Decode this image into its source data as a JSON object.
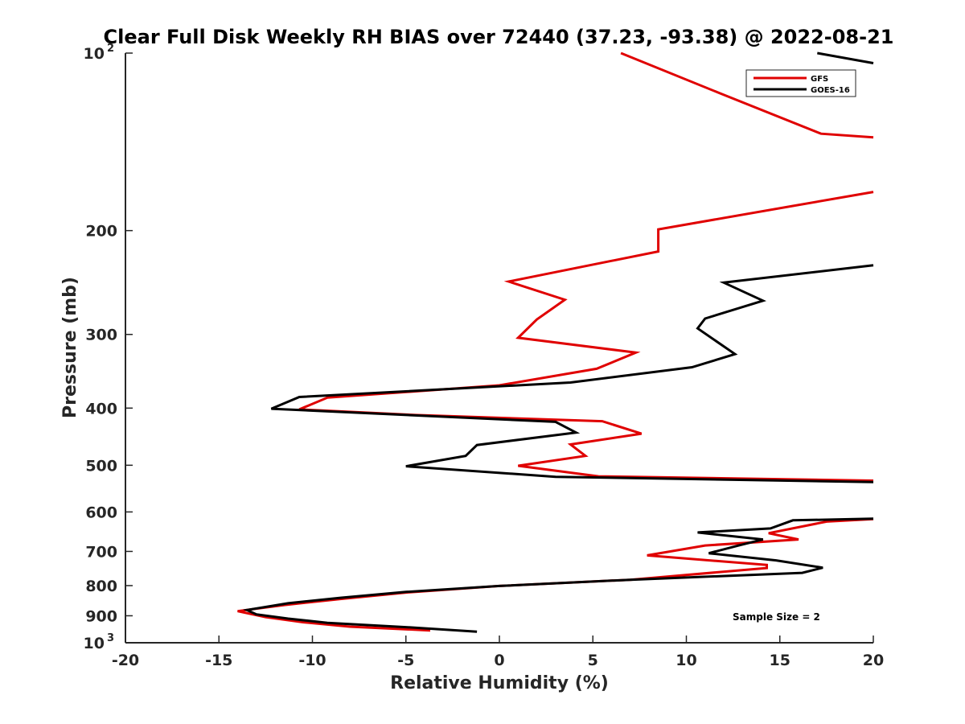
{
  "chart_data": {
    "type": "line",
    "title": "Clear Full Disk Weekly RH BIAS over 72440 (37.23, -93.38) @ 2022-08-21",
    "xlabel": "Relative Humidity (%)",
    "ylabel": "Pressure (mb)",
    "xlim": [
      -20,
      20
    ],
    "ylim": [
      100,
      1000
    ],
    "yscale": "log",
    "y_reversed": true,
    "xticks": [
      -20,
      -15,
      -10,
      -5,
      0,
      5,
      10,
      15,
      20
    ],
    "yticks": [
      {
        "value": 100,
        "label_base": "10",
        "label_exp": "2"
      },
      {
        "value": 200,
        "label_base": "200",
        "label_exp": ""
      },
      {
        "value": 300,
        "label_base": "300",
        "label_exp": ""
      },
      {
        "value": 400,
        "label_base": "400",
        "label_exp": ""
      },
      {
        "value": 500,
        "label_base": "500",
        "label_exp": ""
      },
      {
        "value": 600,
        "label_base": "600",
        "label_exp": ""
      },
      {
        "value": 700,
        "label_base": "700",
        "label_exp": ""
      },
      {
        "value": 800,
        "label_base": "800",
        "label_exp": ""
      },
      {
        "value": 900,
        "label_base": "900",
        "label_exp": ""
      },
      {
        "value": 1000,
        "label_base": "10",
        "label_exp": "3"
      }
    ],
    "grid": false,
    "legend_position": "top-right",
    "annotation": "Sample Size = 2",
    "series": [
      {
        "name": "GFS",
        "color": "#e00000",
        "points": [
          [
            6.5,
            100
          ],
          [
            11.8,
            117
          ],
          [
            17.2,
            137
          ],
          [
            20.0,
            139
          ],
          [
            null,
            null
          ],
          [
            20.0,
            172
          ],
          [
            8.5,
            199
          ],
          [
            8.5,
            217
          ],
          [
            0.5,
            244
          ],
          [
            3.5,
            262
          ],
          [
            2.0,
            283
          ],
          [
            1.0,
            304
          ],
          [
            7.3,
            322
          ],
          [
            5.2,
            343
          ],
          [
            0.0,
            366
          ],
          [
            -9.2,
            384
          ],
          [
            -10.7,
            402
          ],
          [
            -4.5,
            411
          ],
          [
            5.5,
            421
          ],
          [
            7.6,
            442
          ],
          [
            3.8,
            461
          ],
          [
            4.6,
            482
          ],
          [
            1.0,
            501
          ],
          [
            5.3,
            522
          ],
          [
            20.0,
            531
          ],
          [
            null,
            null
          ],
          [
            20.0,
            617
          ],
          [
            17.5,
            623
          ],
          [
            14.4,
            652
          ],
          [
            16.0,
            668
          ],
          [
            11.0,
            684
          ],
          [
            7.9,
            711
          ],
          [
            14.3,
            738
          ],
          [
            14.3,
            747
          ],
          [
            7.0,
            782
          ],
          [
            0.0,
            801
          ],
          [
            -5.0,
            822
          ],
          [
            -8.5,
            843
          ],
          [
            -11.5,
            863
          ],
          [
            -14.0,
            884
          ],
          [
            -12.5,
            905
          ],
          [
            -10.5,
            923
          ],
          [
            -8.0,
            939
          ],
          [
            -3.7,
            953
          ]
        ]
      },
      {
        "name": "GOES-16",
        "color": "#000000",
        "points": [
          [
            17.0,
            100
          ],
          [
            20.0,
            104
          ],
          [
            null,
            null
          ],
          [
            20.0,
            229
          ],
          [
            12.0,
            245
          ],
          [
            14.1,
            263
          ],
          [
            11.0,
            282
          ],
          [
            10.6,
            293
          ],
          [
            12.6,
            324
          ],
          [
            10.3,
            341
          ],
          [
            3.8,
            362
          ],
          [
            -10.7,
            383
          ],
          [
            -12.2,
            401
          ],
          [
            3.0,
            422
          ],
          [
            4.1,
            440
          ],
          [
            -1.2,
            462
          ],
          [
            -1.8,
            482
          ],
          [
            -5.0,
            502
          ],
          [
            3.0,
            523
          ],
          [
            20.0,
            534
          ],
          [
            null,
            null
          ],
          [
            20.0,
            616
          ],
          [
            15.7,
            620
          ],
          [
            14.5,
            640
          ],
          [
            10.6,
            650
          ],
          [
            14.1,
            668
          ],
          [
            12.8,
            684
          ],
          [
            11.2,
            705
          ],
          [
            14.8,
            725
          ],
          [
            17.3,
            746
          ],
          [
            16.2,
            761
          ],
          [
            7.0,
            782
          ],
          [
            0.0,
            801
          ],
          [
            -5.0,
            820
          ],
          [
            -8.5,
            839
          ],
          [
            -11.3,
            857
          ],
          [
            -13.5,
            880
          ],
          [
            -13.0,
            895
          ],
          [
            -11.3,
            910
          ],
          [
            -9.2,
            925
          ],
          [
            -5.0,
            941
          ],
          [
            -1.2,
            958
          ]
        ]
      }
    ]
  }
}
